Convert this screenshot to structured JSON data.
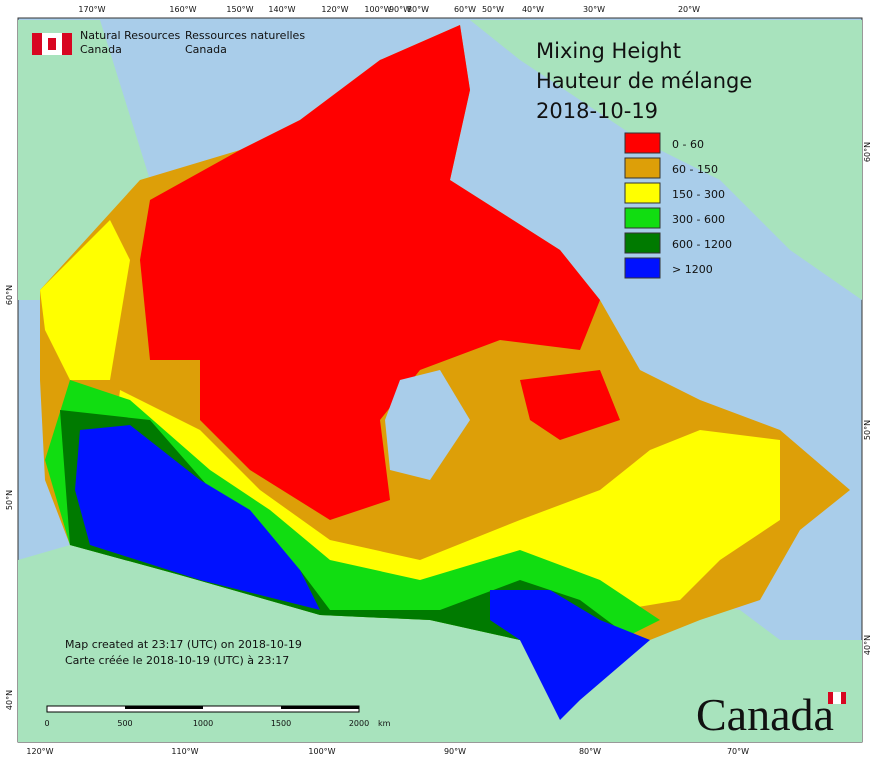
{
  "header": {
    "org_en": [
      "Natural Resources",
      "Canada"
    ],
    "org_fr": [
      "Ressources naturelles",
      "Canada"
    ]
  },
  "title": [
    "Mixing Height",
    "Hauteur de mélange",
    "2018-10-19"
  ],
  "legend": [
    {
      "label": "0 - 60",
      "color": "#ff0000"
    },
    {
      "label": "60 - 150",
      "color": "#dd9f08"
    },
    {
      "label": "150 - 300",
      "color": "#ffff00"
    },
    {
      "label": "300 - 600",
      "color": "#11dd11"
    },
    {
      "label": "600 - 1200",
      "color": "#007a00"
    },
    {
      "label": "> 1200",
      "color": "#0011ff"
    }
  ],
  "graticule": {
    "top": [
      "170°W",
      "160°W",
      "150°W",
      "140°W",
      "120°W",
      "100°W",
      "90°W",
      "80°W",
      "60°W",
      "50°W",
      "40°W",
      "30°W",
      "20°W"
    ],
    "bottom": [
      "120°W",
      "110°W",
      "100°W",
      "90°W",
      "80°W",
      "70°W"
    ],
    "left": [
      "60°N",
      "50°N",
      "40°N"
    ],
    "right": [
      "60°N",
      "50°N",
      "40°N"
    ]
  },
  "credits": [
    "Map created at 23:17 (UTC) on 2018-10-19",
    "Carte créée le 2018-10-19 (UTC) à 23:17"
  ],
  "scale_bar": {
    "ticks": [
      "0",
      "500",
      "1000",
      "1500",
      "2000"
    ],
    "unit": "km"
  },
  "wordmark": "Canada"
}
